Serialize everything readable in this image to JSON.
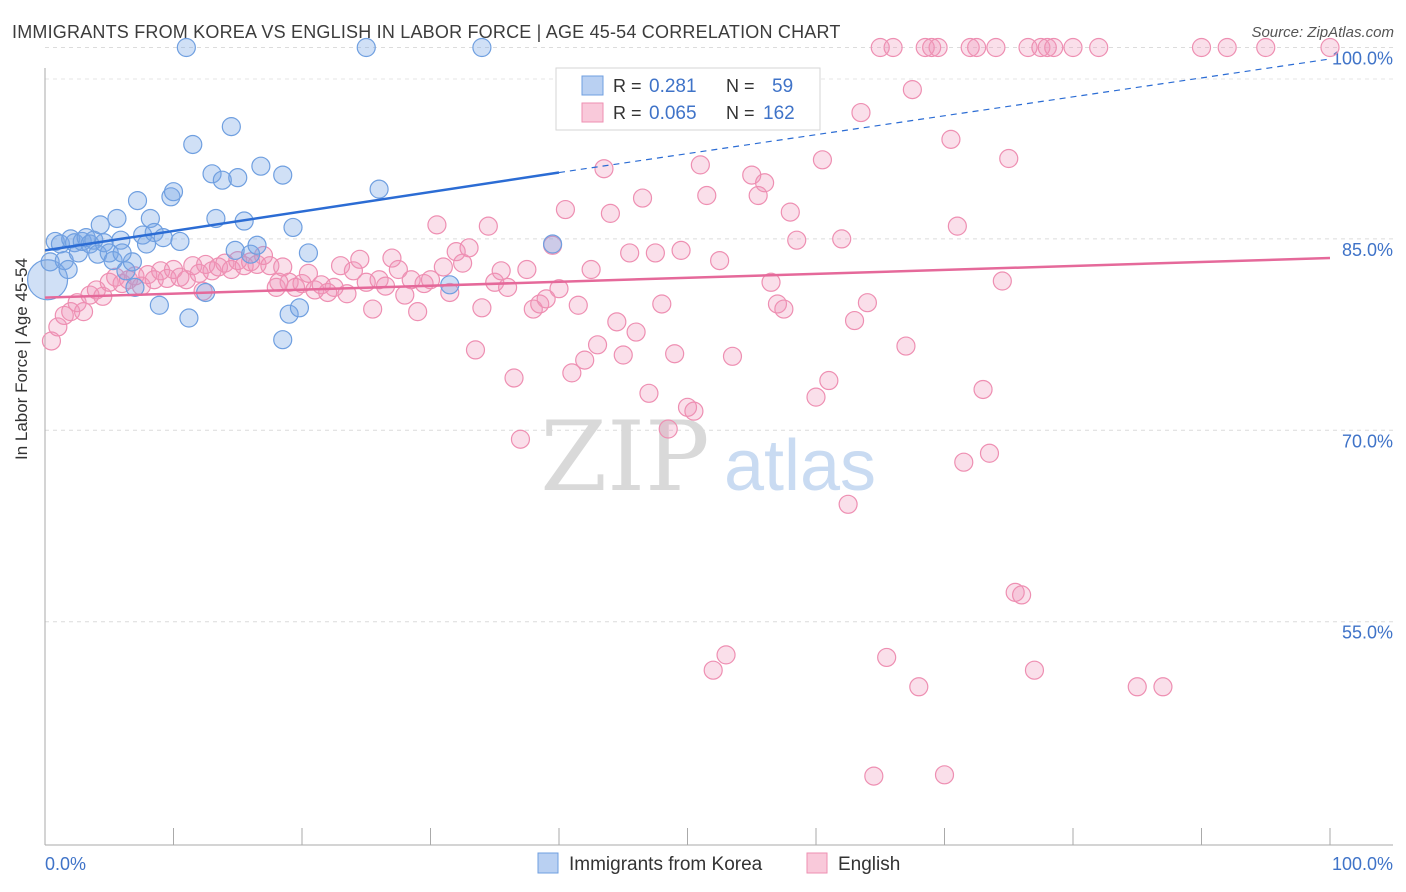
{
  "header": {
    "title": "IMMIGRANTS FROM KOREA VS ENGLISH IN LABOR FORCE | AGE 45-54 CORRELATION CHART",
    "source": "Source: ZipAtlas.com"
  },
  "watermark": {
    "zip": "ZIP",
    "atlas": "atlas"
  },
  "legend_box": [
    {
      "r_label": "R =",
      "r_value": "0.281",
      "n_label": "N =",
      "n_value": "59"
    },
    {
      "r_label": "R =",
      "r_value": "0.065",
      "n_label": "N =",
      "n_value": "162"
    }
  ],
  "bottom_legend": [
    {
      "label": "Immigrants from Korea"
    },
    {
      "label": "English"
    }
  ],
  "colors": {
    "korea_fill": "rgba(120,165,230,0.35)",
    "korea_stroke": "#6f9fe0",
    "korea_line": "#2b6cd4",
    "english_fill": "rgba(240,150,185,0.30)",
    "english_stroke": "#ee8fb2",
    "english_line": "#e5699a",
    "tick_text": "#3f73c8"
  },
  "chart_data": {
    "type": "scatter",
    "title": "IMMIGRANTS FROM KOREA VS ENGLISH IN LABOR FORCE | AGE 45-54 CORRELATION CHART",
    "xlabel": "",
    "ylabel": "In Labor Force | Age 45-54",
    "xlim": [
      0,
      100
    ],
    "ylim": [
      37.5,
      102
    ],
    "x_tick_labels": [
      "0.0%",
      "100.0%"
    ],
    "y_ticks": [
      55,
      70,
      85,
      100
    ],
    "y_tick_labels": [
      "55.0%",
      "70.0%",
      "85.0%",
      "100.0%"
    ],
    "grid": true,
    "series": [
      {
        "name": "Immigrants from Korea",
        "r": 0.281,
        "n": 59,
        "trend": {
          "x0": 0,
          "y0": 84.1,
          "x1": 40,
          "y1": 90.2,
          "x_end": 100,
          "y_end": 99.1
        },
        "points": [
          [
            0.2,
            81.8
          ],
          [
            0.4,
            83.2
          ],
          [
            0.8,
            84.8
          ],
          [
            1.2,
            84.6
          ],
          [
            1.5,
            83.3
          ],
          [
            1.8,
            82.6
          ],
          [
            2.0,
            85.0
          ],
          [
            2.3,
            84.7
          ],
          [
            2.6,
            83.9
          ],
          [
            2.9,
            84.8
          ],
          [
            3.2,
            85.1
          ],
          [
            3.5,
            84.6
          ],
          [
            3.8,
            84.9
          ],
          [
            4.1,
            83.8
          ],
          [
            4.3,
            86.1
          ],
          [
            4.6,
            84.7
          ],
          [
            5.0,
            83.9
          ],
          [
            5.3,
            83.3
          ],
          [
            5.6,
            86.6
          ],
          [
            5.9,
            84.9
          ],
          [
            6.3,
            82.5
          ],
          [
            6.8,
            83.2
          ],
          [
            7.0,
            81.2
          ],
          [
            7.2,
            88.0
          ],
          [
            7.6,
            85.3
          ],
          [
            7.9,
            84.6
          ],
          [
            8.2,
            86.6
          ],
          [
            8.5,
            85.5
          ],
          [
            8.9,
            79.8
          ],
          [
            9.2,
            85.1
          ],
          [
            9.8,
            88.3
          ],
          [
            10.0,
            88.7
          ],
          [
            10.5,
            84.8
          ],
          [
            11.0,
            100.0
          ],
          [
            11.2,
            78.8
          ],
          [
            11.5,
            92.4
          ],
          [
            12.5,
            80.8
          ],
          [
            13.0,
            90.1
          ],
          [
            13.3,
            86.6
          ],
          [
            13.8,
            89.6
          ],
          [
            14.5,
            93.8
          ],
          [
            14.8,
            84.1
          ],
          [
            15.5,
            86.4
          ],
          [
            15.0,
            89.8
          ],
          [
            16.0,
            83.8
          ],
          [
            16.5,
            84.5
          ],
          [
            16.8,
            90.7
          ],
          [
            18.5,
            90.0
          ],
          [
            18.5,
            77.1
          ],
          [
            19.0,
            79.1
          ],
          [
            19.3,
            85.9
          ],
          [
            19.8,
            79.6
          ],
          [
            20.5,
            83.9
          ],
          [
            25.0,
            100.0
          ],
          [
            26.0,
            88.9
          ],
          [
            31.5,
            81.4
          ],
          [
            34.0,
            100.0
          ],
          [
            39.5,
            84.6
          ],
          [
            6.0,
            83.9
          ]
        ]
      },
      {
        "name": "English",
        "r": 0.065,
        "n": 162,
        "trend": {
          "x0": 0,
          "y0": 80.4,
          "x1": 100,
          "y1": 83.5
        },
        "points": [
          [
            0.5,
            77.0
          ],
          [
            1.0,
            78.1
          ],
          [
            1.5,
            79.0
          ],
          [
            2.0,
            79.3
          ],
          [
            2.5,
            80.0
          ],
          [
            3.0,
            79.3
          ],
          [
            3.5,
            80.6
          ],
          [
            4.0,
            81.0
          ],
          [
            4.5,
            80.5
          ],
          [
            5.0,
            81.6
          ],
          [
            5.5,
            82.0
          ],
          [
            6.0,
            81.5
          ],
          [
            6.5,
            81.8
          ],
          [
            7.0,
            82.1
          ],
          [
            7.5,
            81.3
          ],
          [
            8.0,
            82.2
          ],
          [
            8.5,
            81.8
          ],
          [
            9.0,
            82.5
          ],
          [
            9.5,
            81.9
          ],
          [
            10.0,
            82.6
          ],
          [
            10.5,
            82.0
          ],
          [
            11.0,
            81.8
          ],
          [
            11.5,
            82.9
          ],
          [
            12.0,
            82.3
          ],
          [
            12.5,
            83.0
          ],
          [
            13.0,
            82.5
          ],
          [
            13.5,
            82.8
          ],
          [
            14.0,
            83.1
          ],
          [
            14.5,
            82.6
          ],
          [
            15.0,
            83.3
          ],
          [
            15.5,
            82.9
          ],
          [
            16.0,
            83.2
          ],
          [
            16.5,
            83.0
          ],
          [
            17.0,
            83.7
          ],
          [
            17.5,
            82.9
          ],
          [
            18.0,
            81.2
          ],
          [
            18.5,
            82.8
          ],
          [
            19.0,
            81.6
          ],
          [
            19.5,
            81.2
          ],
          [
            20.0,
            81.5
          ],
          [
            20.5,
            82.3
          ],
          [
            21.0,
            81.0
          ],
          [
            21.5,
            81.4
          ],
          [
            22.0,
            80.8
          ],
          [
            22.5,
            81.2
          ],
          [
            23.0,
            82.9
          ],
          [
            23.5,
            80.7
          ],
          [
            24.0,
            82.5
          ],
          [
            24.5,
            83.4
          ],
          [
            25.0,
            81.6
          ],
          [
            25.5,
            79.5
          ],
          [
            26.0,
            81.8
          ],
          [
            26.5,
            81.3
          ],
          [
            27.0,
            83.5
          ],
          [
            27.5,
            82.6
          ],
          [
            28.0,
            80.6
          ],
          [
            28.5,
            81.8
          ],
          [
            29.0,
            79.3
          ],
          [
            29.5,
            81.5
          ],
          [
            30.0,
            81.8
          ],
          [
            30.5,
            86.1
          ],
          [
            31.0,
            82.8
          ],
          [
            31.5,
            80.8
          ],
          [
            32.0,
            84.0
          ],
          [
            32.5,
            83.1
          ],
          [
            33.0,
            84.3
          ],
          [
            33.5,
            76.3
          ],
          [
            34.0,
            79.6
          ],
          [
            34.5,
            86.0
          ],
          [
            35.0,
            81.6
          ],
          [
            35.5,
            82.5
          ],
          [
            36.0,
            81.2
          ],
          [
            36.5,
            74.1
          ],
          [
            37.0,
            69.3
          ],
          [
            37.5,
            82.6
          ],
          [
            38.0,
            79.5
          ],
          [
            38.5,
            79.9
          ],
          [
            39.0,
            80.3
          ],
          [
            39.5,
            84.5
          ],
          [
            40.0,
            81.1
          ],
          [
            40.5,
            87.3
          ],
          [
            41.0,
            74.5
          ],
          [
            41.5,
            79.8
          ],
          [
            42.0,
            75.5
          ],
          [
            42.5,
            82.6
          ],
          [
            43.0,
            76.7
          ],
          [
            43.5,
            90.5
          ],
          [
            44.0,
            87.0
          ],
          [
            44.5,
            78.5
          ],
          [
            45.0,
            75.9
          ],
          [
            45.5,
            83.9
          ],
          [
            46.0,
            77.7
          ],
          [
            46.5,
            88.2
          ],
          [
            47.0,
            72.9
          ],
          [
            47.5,
            83.9
          ],
          [
            48.0,
            79.9
          ],
          [
            48.5,
            70.1
          ],
          [
            49.0,
            76.0
          ],
          [
            49.5,
            84.1
          ],
          [
            50.0,
            71.8
          ],
          [
            50.5,
            71.5
          ],
          [
            51.0,
            90.8
          ],
          [
            51.5,
            88.4
          ],
          [
            52.0,
            51.2
          ],
          [
            52.5,
            83.3
          ],
          [
            53.0,
            52.4
          ],
          [
            53.5,
            75.8
          ],
          [
            55.0,
            90.0
          ],
          [
            55.5,
            88.4
          ],
          [
            56.0,
            89.4
          ],
          [
            56.5,
            81.6
          ],
          [
            57.0,
            79.9
          ],
          [
            57.5,
            79.5
          ],
          [
            58.0,
            87.1
          ],
          [
            58.5,
            84.9
          ],
          [
            59.0,
            96.5
          ],
          [
            60.0,
            72.6
          ],
          [
            60.5,
            91.2
          ],
          [
            61.0,
            73.9
          ],
          [
            62.0,
            85.0
          ],
          [
            62.5,
            64.2
          ],
          [
            63.0,
            78.6
          ],
          [
            63.5,
            94.9
          ],
          [
            64.0,
            80.0
          ],
          [
            64.5,
            42.9
          ],
          [
            65.0,
            100.0
          ],
          [
            65.5,
            52.2
          ],
          [
            66.0,
            100.0
          ],
          [
            67.0,
            76.6
          ],
          [
            67.5,
            96.7
          ],
          [
            68.0,
            49.9
          ],
          [
            68.5,
            100.0
          ],
          [
            69.0,
            100.0
          ],
          [
            69.5,
            100.0
          ],
          [
            70.0,
            43.0
          ],
          [
            70.5,
            92.8
          ],
          [
            71.0,
            86.0
          ],
          [
            71.5,
            67.5
          ],
          [
            72.0,
            100.0
          ],
          [
            72.5,
            100.0
          ],
          [
            73.0,
            73.2
          ],
          [
            73.5,
            68.2
          ],
          [
            74.0,
            100.0
          ],
          [
            74.5,
            81.7
          ],
          [
            75.0,
            91.3
          ],
          [
            75.5,
            57.3
          ],
          [
            76.0,
            57.1
          ],
          [
            76.5,
            100.0
          ],
          [
            77.0,
            51.2
          ],
          [
            77.5,
            100.0
          ],
          [
            78.0,
            100.0
          ],
          [
            78.5,
            100.0
          ],
          [
            80.0,
            100.0
          ],
          [
            82.0,
            100.0
          ],
          [
            85.0,
            49.9
          ],
          [
            87.0,
            49.9
          ],
          [
            90.0,
            100.0
          ],
          [
            92.0,
            100.0
          ],
          [
            95.0,
            100.0
          ],
          [
            100.0,
            100.0
          ],
          [
            12.3,
            80.9
          ],
          [
            18.2,
            81.6
          ]
        ]
      }
    ]
  }
}
